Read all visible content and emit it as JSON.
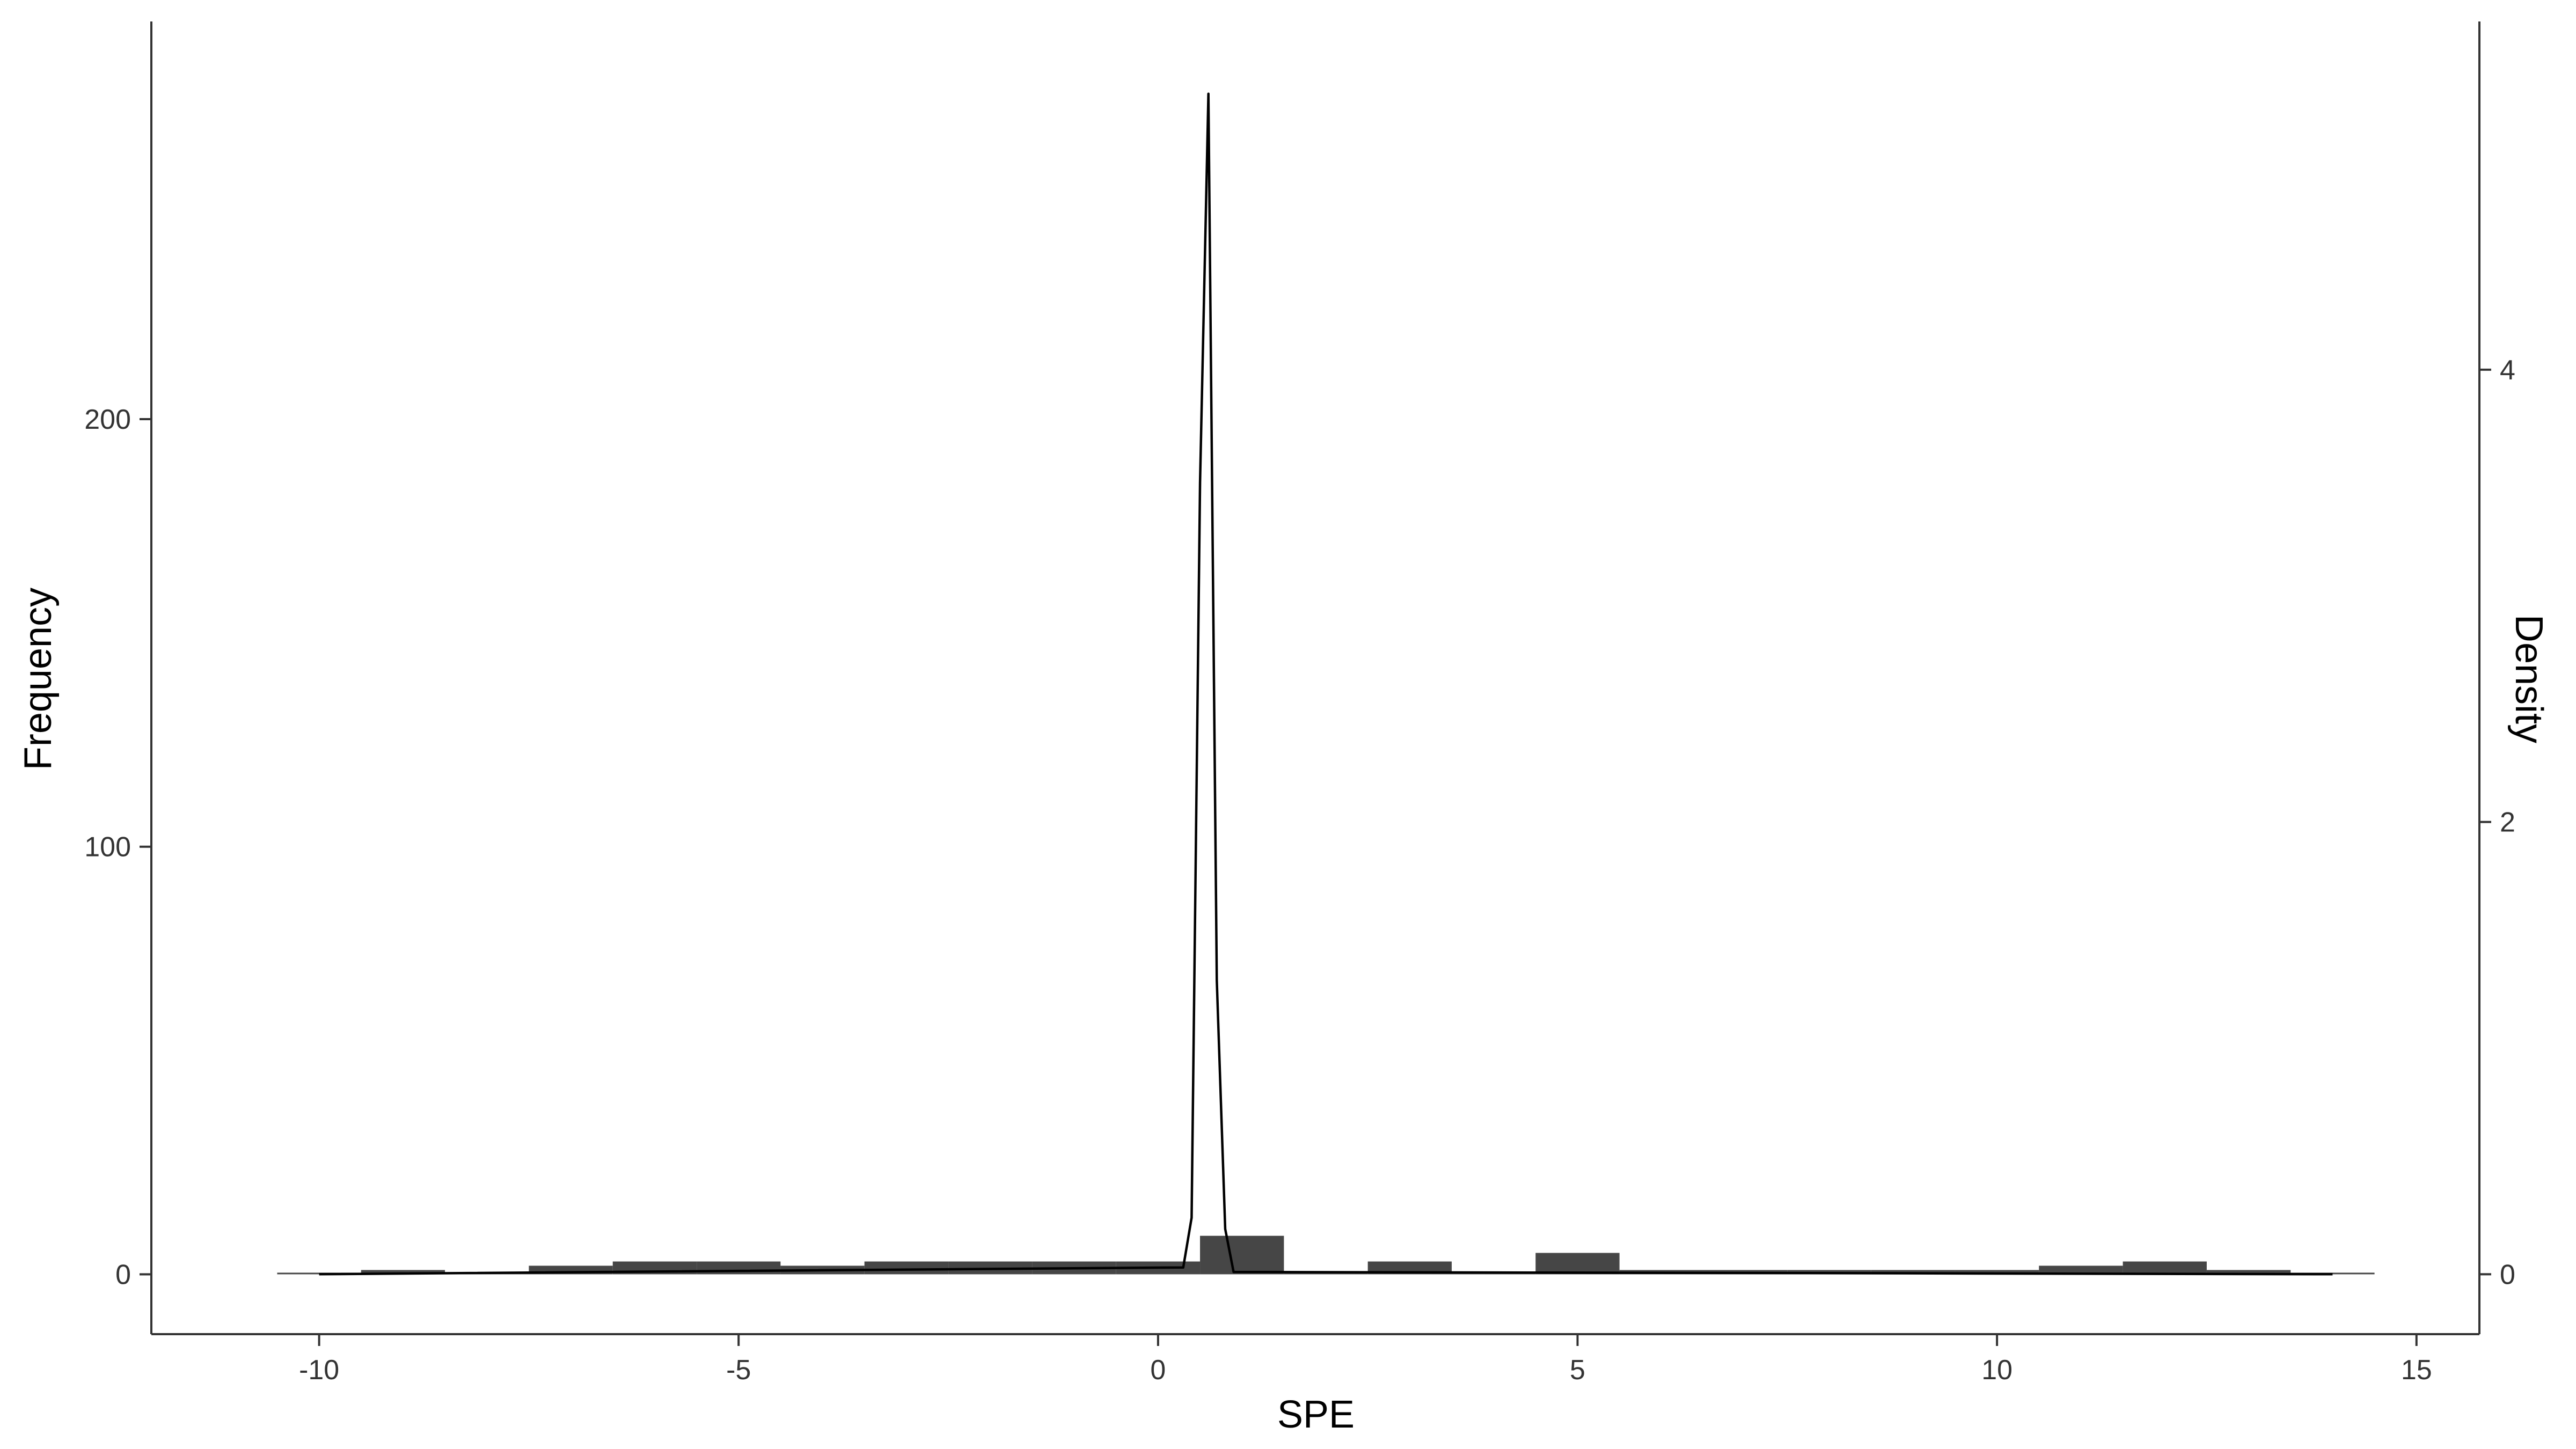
{
  "chart_data": {
    "type": "bar",
    "title": "",
    "xlabel": "SPE",
    "ylabel": "Frequency",
    "y2label": "Density",
    "grid": false,
    "xlim": [
      -12.0,
      15.75
    ],
    "ylim": [
      -14,
      293
    ],
    "y2lim": [
      -0.265,
      5.54
    ],
    "x_ticks": [
      -10,
      -5,
      0,
      5,
      10,
      15
    ],
    "x_tick_labels": [
      "-10",
      "-5",
      "0",
      "5",
      "10",
      "15"
    ],
    "y_ticks": [
      0,
      100,
      200
    ],
    "y_tick_labels": [
      "0",
      "100",
      "200"
    ],
    "y2_ticks": [
      0,
      2,
      4
    ],
    "y2_tick_labels": [
      "0",
      "2",
      "4"
    ],
    "histogram": {
      "name": "Frequency",
      "color": "#464646",
      "bins": [
        {
          "x0": -10.5,
          "x1": -9.5,
          "count": 0
        },
        {
          "x0": -9.5,
          "x1": -8.5,
          "count": 1
        },
        {
          "x0": -8.5,
          "x1": -7.5,
          "count": 0
        },
        {
          "x0": -7.5,
          "x1": -6.5,
          "count": 2
        },
        {
          "x0": -6.5,
          "x1": -5.5,
          "count": 3
        },
        {
          "x0": -5.5,
          "x1": -4.5,
          "count": 3
        },
        {
          "x0": -4.5,
          "x1": -3.5,
          "count": 2
        },
        {
          "x0": -3.5,
          "x1": -2.5,
          "count": 3
        },
        {
          "x0": -2.5,
          "x1": -1.5,
          "count": 3
        },
        {
          "x0": -1.5,
          "x1": -0.5,
          "count": 3
        },
        {
          "x0": -0.5,
          "x1": 0.5,
          "count": 3
        },
        {
          "x0": 0.5,
          "x1": 1.5,
          "count": 9
        },
        {
          "x0": 1.5,
          "x1": 2.5,
          "count": 0
        },
        {
          "x0": 2.5,
          "x1": 3.5,
          "count": 3
        },
        {
          "x0": 3.5,
          "x1": 4.5,
          "count": 0
        },
        {
          "x0": 4.5,
          "x1": 5.5,
          "count": 5
        },
        {
          "x0": 5.5,
          "x1": 6.5,
          "count": 1
        },
        {
          "x0": 6.5,
          "x1": 7.5,
          "count": 1
        },
        {
          "x0": 7.5,
          "x1": 8.5,
          "count": 1
        },
        {
          "x0": 8.5,
          "x1": 9.5,
          "count": 1
        },
        {
          "x0": 9.5,
          "x1": 10.5,
          "count": 1
        },
        {
          "x0": 10.5,
          "x1": 11.5,
          "count": 2
        },
        {
          "x0": 11.5,
          "x1": 12.5,
          "count": 3
        },
        {
          "x0": 12.5,
          "x1": 13.5,
          "count": 1
        },
        {
          "x0": 13.5,
          "x1": 14.5,
          "count": 0
        }
      ]
    },
    "density": {
      "name": "Density",
      "color": "#000000",
      "x": [
        -10.0,
        0.3,
        0.4,
        0.5,
        0.6,
        0.7,
        0.8,
        0.9,
        14.0
      ],
      "y": [
        0,
        0.03,
        0.25,
        3.5,
        5.22,
        1.3,
        0.2,
        0.01,
        0
      ]
    }
  }
}
